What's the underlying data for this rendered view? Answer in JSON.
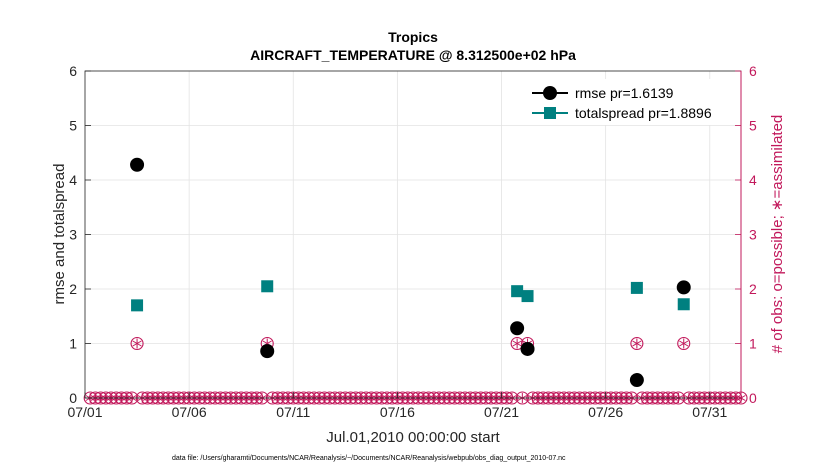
{
  "chart_data": {
    "type": "line",
    "title": "Tropics",
    "subtitle": "AIRCRAFT_TEMPERATURE @ 8.312500e+02 hPa",
    "xlabel": "Jul.01,2010 00:00:00 start",
    "ylabel": "rmse and totalspread",
    "ylabel_right": "# of obs: o=possible; ∗=assimilated",
    "footnote": "data file: /Users/gharamti/Documents/NCAR/Reanalysis/~/Documents/NCAR/Reanalysis/webpub/obs_diag_output_2010-07.nc",
    "xlim": [
      0,
      31.5
    ],
    "ylim": [
      0,
      6
    ],
    "ylim_right": [
      0,
      6
    ],
    "x_ticks": [
      0,
      5,
      10,
      15,
      20,
      25,
      30
    ],
    "x_tick_labels": [
      "07/01",
      "07/06",
      "07/11",
      "07/16",
      "07/21",
      "07/26",
      "07/31"
    ],
    "y_ticks": [
      0,
      1,
      2,
      3,
      4,
      5,
      6
    ],
    "y_tick_labels": [
      "0",
      "1",
      "2",
      "3",
      "4",
      "5",
      "6"
    ],
    "y_tick_labels_right": [
      "0",
      "1",
      "2",
      "3",
      "4",
      "5",
      "6"
    ],
    "grid": true,
    "legend_position": "top-right",
    "series": [
      {
        "name": "rmse pr=1.6139",
        "color": "#000000",
        "marker": "circle",
        "x": [
          2.5,
          8.75,
          20.75,
          21.25,
          26.5,
          28.75
        ],
        "values": [
          4.28,
          0.86,
          1.28,
          0.9,
          0.33,
          2.03
        ]
      },
      {
        "name": "totalspread pr=1.8896",
        "color": "#008080",
        "marker": "square",
        "x": [
          2.5,
          8.75,
          20.75,
          21.25,
          26.5,
          28.75
        ],
        "values": [
          1.7,
          2.05,
          1.96,
          1.87,
          2.02,
          1.72
        ]
      }
    ],
    "obs_count": {
      "color": "#c2185b",
      "x_start": 0.25,
      "x_end": 31.5,
      "x_step": 0.25,
      "nonzero_x": [
        2.5,
        8.75,
        20.75,
        21.25,
        26.5,
        28.75
      ],
      "nonzero_possible": [
        1,
        1,
        1,
        1,
        1,
        1
      ],
      "nonzero_assimilated": [
        1,
        1,
        1,
        1,
        1,
        1
      ]
    }
  }
}
